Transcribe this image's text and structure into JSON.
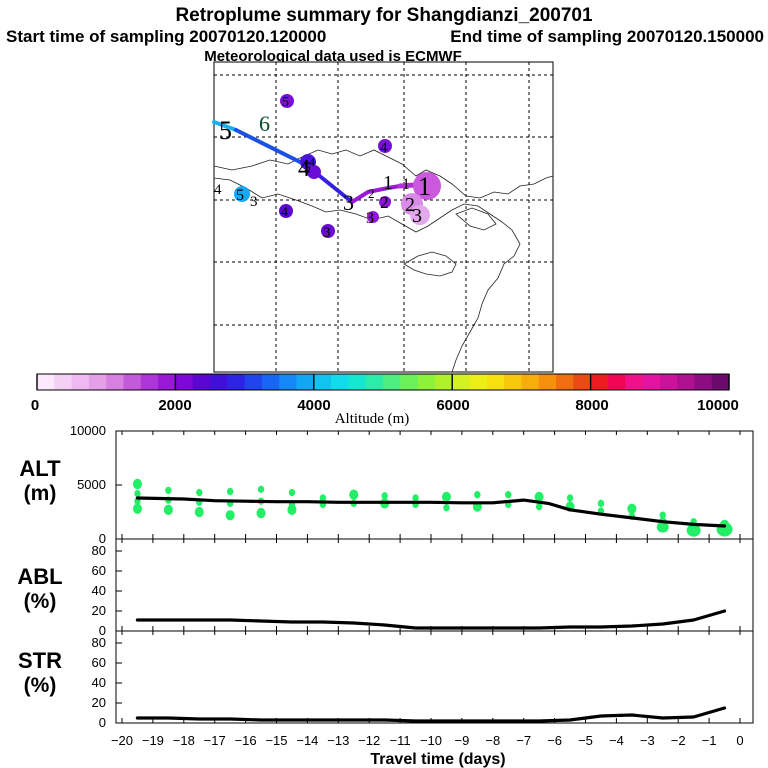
{
  "header": {
    "title": "Retroplume summary for Shangdianzi_200701",
    "start_line": "Start time of sampling 20070120.120000",
    "end_line": "End time of sampling 20070120.150000",
    "met_line": "Meteorological data used is ECMWF"
  },
  "colorbar": {
    "ticks": [
      "0",
      "2000",
      "4000",
      "6000",
      "8000",
      "10000"
    ],
    "label": "Altitude (m)",
    "colors": [
      "#fce8fc",
      "#f5d0f5",
      "#eeb8f0",
      "#e59ee8",
      "#d680e2",
      "#c45adb",
      "#ae36d8",
      "#9818d6",
      "#7e08d8",
      "#5c06d2",
      "#4010da",
      "#2c24e2",
      "#2244ee",
      "#1a66f4",
      "#1688f6",
      "#12a6f4",
      "#10c4f0",
      "#10dcec",
      "#14e8d0",
      "#2cecaa",
      "#4cee82",
      "#6cf05a",
      "#8cf23a",
      "#b0f22a",
      "#d2f222",
      "#ecee16",
      "#f6e00e",
      "#f8c80a",
      "#f8ae0a",
      "#f6900c",
      "#f06e10",
      "#ea4a14",
      "#ec1c20",
      "#f20454",
      "#f0108a",
      "#e414a0",
      "#cc129a",
      "#ae1090",
      "#8e0c82",
      "#6c0a6c"
    ]
  },
  "map": {
    "plume_labels": [
      {
        "text": "5",
        "color": "#000000"
      },
      {
        "text": "6",
        "color": "#0a4a2a"
      },
      {
        "text": "4",
        "color": "#000000"
      },
      {
        "text": "5",
        "color": "#000000"
      },
      {
        "text": "4",
        "color": "#000000"
      },
      {
        "text": "5",
        "color": "#000000"
      },
      {
        "text": "3",
        "color": "#000000"
      },
      {
        "text": "3",
        "color": "#000000"
      },
      {
        "text": "2",
        "color": "#000000"
      },
      {
        "text": "1",
        "color": "#000000"
      },
      {
        "text": "1",
        "color": "#000000"
      },
      {
        "text": "1",
        "color": "#000000"
      },
      {
        "text": "2",
        "color": "#000000"
      },
      {
        "text": "3",
        "color": "#000000"
      },
      {
        "text": "3",
        "color": "#000000"
      },
      {
        "text": "4",
        "color": "#000000"
      },
      {
        "text": "5",
        "color": "#000000"
      },
      {
        "text": "4",
        "color": "#000000"
      },
      {
        "text": "4",
        "color": "#000000"
      },
      {
        "text": "3",
        "color": "#000000"
      },
      {
        "text": "2",
        "color": "#000000"
      }
    ]
  },
  "chart_data": [
    {
      "type": "line",
      "title": "ALT (m)",
      "xlabel": "Travel time (days)",
      "ylabel": "ALT (m)",
      "xlim": [
        -20.2,
        0.5
      ],
      "ylim": [
        0,
        10000
      ],
      "yticks": [
        "0",
        "5000",
        "10000"
      ],
      "series": [
        {
          "name": "mean altitude",
          "x": [
            -19.5,
            -18,
            -17,
            -16,
            -15,
            -14,
            -13,
            -12,
            -11,
            -10,
            -9,
            -8,
            -7,
            -6.2,
            -5.5,
            -4.5,
            -3.5,
            -2.5,
            -1.5,
            -0.5
          ],
          "values": [
            3800,
            3700,
            3550,
            3500,
            3450,
            3450,
            3400,
            3400,
            3400,
            3400,
            3350,
            3350,
            3600,
            3300,
            2700,
            2300,
            1950,
            1600,
            1350,
            1200
          ]
        }
      ],
      "scatter": {
        "name": "plume altitude clusters",
        "x": [
          -19.5,
          -19.5,
          -19.5,
          -19.5,
          -18.5,
          -18.5,
          -18.5,
          -17.5,
          -17.5,
          -17.5,
          -16.5,
          -16.5,
          -16.5,
          -15.5,
          -15.5,
          -15.5,
          -14.5,
          -14.5,
          -14.5,
          -13.5,
          -13.5,
          -12.5,
          -12.5,
          -11.5,
          -11.5,
          -10.5,
          -10.5,
          -9.5,
          -9.5,
          -8.5,
          -8.5,
          -7.5,
          -7.5,
          -6.5,
          -6.5,
          -5.5,
          -5.5,
          -4.5,
          -4.5,
          -3.5,
          -3.5,
          -2.5,
          -2.5,
          -1.5,
          -1.5,
          -0.5,
          -0.5
        ],
        "y": [
          5100,
          4200,
          3500,
          2800,
          4500,
          3600,
          2700,
          4300,
          3400,
          2500,
          4400,
          3300,
          2200,
          4600,
          3500,
          2400,
          4300,
          3200,
          2700,
          3800,
          3200,
          4100,
          3300,
          4000,
          3300,
          3800,
          3200,
          3900,
          2900,
          4100,
          3000,
          4100,
          3200,
          3900,
          3000,
          3800,
          3000,
          3300,
          2600,
          2800,
          2100,
          2200,
          1500,
          1600,
          900,
          1300,
          900
        ]
      }
    },
    {
      "type": "line",
      "title": "ABL (%)",
      "xlabel": "Travel time (days)",
      "ylabel": "ABL (%)",
      "xlim": [
        -20.2,
        0.5
      ],
      "ylim": [
        0,
        90
      ],
      "yticks": [
        "0",
        "20",
        "40",
        "60",
        "80"
      ],
      "series": [
        {
          "name": "fraction in boundary layer",
          "x": [
            -19.5,
            -18.5,
            -17.5,
            -16.5,
            -15.5,
            -14.5,
            -13.5,
            -12.5,
            -11.5,
            -10.5,
            -9.5,
            -8.5,
            -7.5,
            -6.5,
            -5.5,
            -4.5,
            -3.5,
            -2.5,
            -1.5,
            -0.5
          ],
          "values": [
            11,
            11,
            11,
            11,
            10,
            9,
            9,
            8,
            6,
            3,
            3,
            3,
            3,
            3,
            4,
            4,
            5,
            7,
            11,
            20
          ]
        }
      ]
    },
    {
      "type": "line",
      "title": "STR (%)",
      "xlabel": "Travel time (days)",
      "ylabel": "STR (%)",
      "xlim": [
        -20.2,
        0.5
      ],
      "ylim": [
        0,
        90
      ],
      "xticks": [
        "-20",
        "-19",
        "-18",
        "-17",
        "-16",
        "-15",
        "-14",
        "-13",
        "-12",
        "-11",
        "-10",
        "-9",
        "-8",
        "-7",
        "-6",
        "-5",
        "-4",
        "-3",
        "-2",
        "-1",
        "0"
      ],
      "yticks": [
        "0",
        "20",
        "40",
        "60",
        "80"
      ],
      "series": [
        {
          "name": "fraction in stratosphere",
          "x": [
            -19.5,
            -18.5,
            -17.5,
            -16.5,
            -15.5,
            -14.5,
            -13.5,
            -12.5,
            -11.5,
            -10.5,
            -9.5,
            -8.5,
            -7.5,
            -6.5,
            -5.5,
            -4.5,
            -3.5,
            -2.5,
            -1.5,
            -0.5
          ],
          "values": [
            5,
            5,
            4,
            4,
            3,
            3,
            3,
            3,
            3,
            2,
            2,
            2,
            2,
            2,
            3,
            7,
            8,
            5,
            6,
            15
          ]
        }
      ]
    }
  ]
}
